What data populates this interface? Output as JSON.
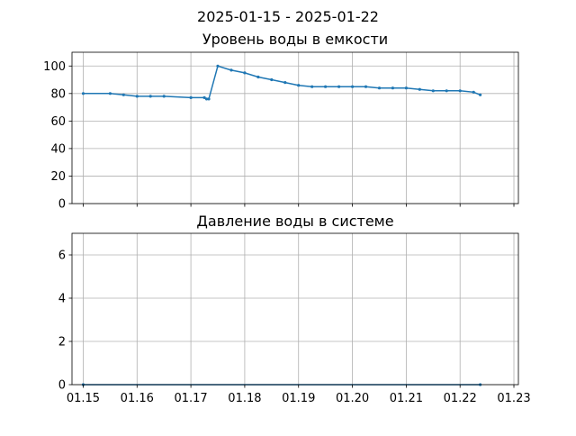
{
  "figure": {
    "suptitle": "2025-01-15 - 2025-01-22",
    "line_color": "#1f77b4",
    "grid_color": "#b0b0b0"
  },
  "chart_data": [
    {
      "type": "line",
      "title": "Уровень воды в емкости",
      "xlabel": "",
      "ylabel": "",
      "x_tick_labels": [],
      "x_ticks": [
        "2025-01-15",
        "2025-01-16",
        "2025-01-17",
        "2025-01-18",
        "2025-01-19",
        "2025-01-20",
        "2025-01-21",
        "2025-01-22",
        "2025-01-23"
      ],
      "xlim": [
        "2025-01-14 19:00",
        "2025-01-23 02:00"
      ],
      "yticks": [
        0,
        20,
        40,
        60,
        80,
        100
      ],
      "ylim": [
        0,
        110
      ],
      "grid": true,
      "series": [
        {
          "x": [
            "2025-01-15 00:00",
            "2025-01-15 12:00",
            "2025-01-15 18:00",
            "2025-01-16 00:00",
            "2025-01-16 06:00",
            "2025-01-16 12:00",
            "2025-01-17 00:00",
            "2025-01-17 06:00",
            "2025-01-17 07:00",
            "2025-01-17 08:00",
            "2025-01-17 12:00",
            "2025-01-17 18:00",
            "2025-01-18 00:00",
            "2025-01-18 06:00",
            "2025-01-18 12:00",
            "2025-01-18 18:00",
            "2025-01-19 00:00",
            "2025-01-19 06:00",
            "2025-01-19 12:00",
            "2025-01-19 18:00",
            "2025-01-20 00:00",
            "2025-01-20 06:00",
            "2025-01-20 12:00",
            "2025-01-20 18:00",
            "2025-01-21 00:00",
            "2025-01-21 06:00",
            "2025-01-21 12:00",
            "2025-01-21 18:00",
            "2025-01-22 00:00",
            "2025-01-22 06:00",
            "2025-01-22 09:00"
          ],
          "y": [
            80,
            80,
            79,
            78,
            78,
            78,
            77,
            77,
            76,
            76,
            100,
            97,
            95,
            92,
            90,
            88,
            86,
            85,
            85,
            85,
            85,
            85,
            84,
            84,
            84,
            83,
            82,
            82,
            82,
            81,
            79
          ]
        }
      ]
    },
    {
      "type": "line",
      "title": "Давление воды в системе",
      "xlabel": "",
      "ylabel": "",
      "x_tick_labels": [
        "01.15",
        "01.16",
        "01.17",
        "01.18",
        "01.19",
        "01.20",
        "01.21",
        "01.22",
        "01.23"
      ],
      "x_ticks": [
        "2025-01-15",
        "2025-01-16",
        "2025-01-17",
        "2025-01-18",
        "2025-01-19",
        "2025-01-20",
        "2025-01-21",
        "2025-01-22",
        "2025-01-23"
      ],
      "xlim": [
        "2025-01-14 19:00",
        "2025-01-23 02:00"
      ],
      "yticks": [
        0,
        2,
        4,
        6
      ],
      "ylim": [
        0,
        7
      ],
      "grid": true,
      "series": [
        {
          "x": [
            "2025-01-15 00:00",
            "2025-01-22 09:00"
          ],
          "y": [
            0,
            0
          ]
        }
      ]
    }
  ]
}
